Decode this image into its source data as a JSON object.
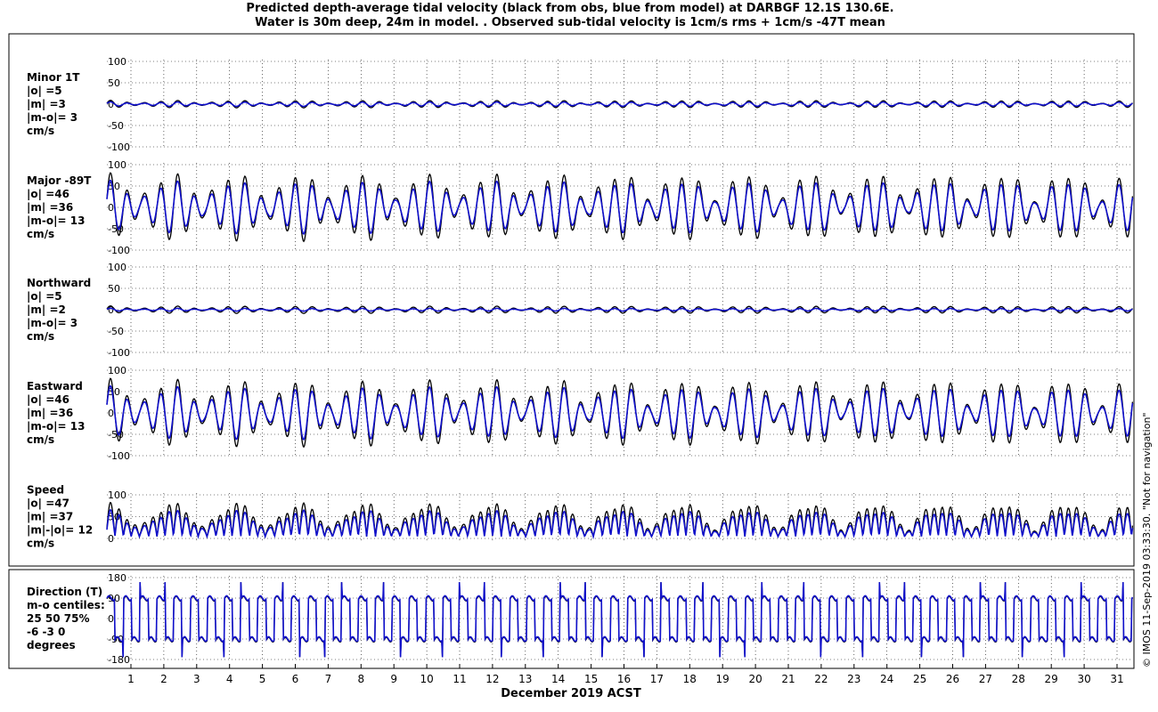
{
  "title_line1": "Predicted depth-average tidal velocity (black from obs, blue from model) at DARBGF 12.1S 130.6E.",
  "title_line2": "Water is 30m deep, 24m in model. . Observed sub-tidal velocity is 1cm/s rms + 1cm/s -47T mean",
  "credit": "© IMOS 11-Sep-2019 03:33:30. \"Not for navigation\"",
  "xlabel": "December 2019 ACST",
  "colors": {
    "obs": "#000000",
    "model": "#1010cc"
  },
  "chart_data": [
    {
      "type": "line",
      "panel": "minor",
      "label_lines": [
        "Minor 1T",
        " |o| =5",
        " |m| =3",
        " |m-o|= 3",
        " cm/s"
      ],
      "ylim": [
        -100,
        100
      ],
      "yticks": [
        "100",
        "50",
        "0",
        "-50",
        "-100"
      ],
      "grid": true,
      "x_categories": [
        "1",
        "2",
        "3",
        "4",
        "5",
        "6",
        "7",
        "8",
        "9",
        "10",
        "11",
        "12",
        "13",
        "14",
        "15",
        "16",
        "17",
        "18",
        "19",
        "20",
        "21",
        "22",
        "23",
        "24",
        "25",
        "26",
        "27",
        "28",
        "29",
        "30",
        "31"
      ],
      "series": [
        {
          "name": "obs",
          "amplitude_rms": 5
        },
        {
          "name": "model",
          "amplitude_rms": 3
        }
      ]
    },
    {
      "type": "line",
      "panel": "major",
      "label_lines": [
        "Major -89T",
        " |o| =46",
        " |m| =36",
        " |m-o|= 13",
        " cm/s"
      ],
      "ylim": [
        -100,
        100
      ],
      "yticks": [
        "100",
        "50",
        "0",
        "-50",
        "-100"
      ],
      "grid": true,
      "series": [
        {
          "name": "obs",
          "amplitude_rms": 46
        },
        {
          "name": "model",
          "amplitude_rms": 36
        }
      ]
    },
    {
      "type": "line",
      "panel": "north",
      "label_lines": [
        "Northward",
        " |o| =5",
        " |m| =2",
        " |m-o|= 3",
        " cm/s"
      ],
      "ylim": [
        -100,
        100
      ],
      "yticks": [
        "100",
        "50",
        "0",
        "-50",
        "-100"
      ],
      "grid": true,
      "series": [
        {
          "name": "obs",
          "amplitude_rms": 5
        },
        {
          "name": "model",
          "amplitude_rms": 2
        }
      ]
    },
    {
      "type": "line",
      "panel": "east",
      "label_lines": [
        "Eastward",
        " |o| =46",
        " |m| =36",
        " |m-o|= 13",
        " cm/s"
      ],
      "ylim": [
        -100,
        100
      ],
      "yticks": [
        "100",
        "50",
        "0",
        "-50",
        "-100"
      ],
      "grid": true,
      "series": [
        {
          "name": "obs",
          "amplitude_rms": 46
        },
        {
          "name": "model",
          "amplitude_rms": 36
        }
      ]
    },
    {
      "type": "line",
      "panel": "speed",
      "label_lines": [
        "Speed",
        " |o| =47",
        " |m| =37",
        " |m|-|o|= 12",
        " cm/s"
      ],
      "ylim": [
        0,
        100
      ],
      "yticks": [
        "100",
        "50",
        "0"
      ],
      "grid": true,
      "series": [
        {
          "name": "obs",
          "amplitude_rms": 47
        },
        {
          "name": "model",
          "amplitude_rms": 37
        }
      ]
    },
    {
      "type": "line",
      "panel": "direction",
      "label_lines": [
        "Direction (T)",
        "m-o centiles:",
        " 25  50  75%",
        "  -6  -3   0",
        "   degrees"
      ],
      "ylim": [
        -180,
        180
      ],
      "yticks": [
        "180",
        "90",
        "0",
        "-90",
        "-180"
      ],
      "grid": true,
      "centiles": {
        "p25": -6,
        "p50": -3,
        "p75": 0
      },
      "series": [
        {
          "name": "obs"
        },
        {
          "name": "model"
        }
      ]
    }
  ]
}
